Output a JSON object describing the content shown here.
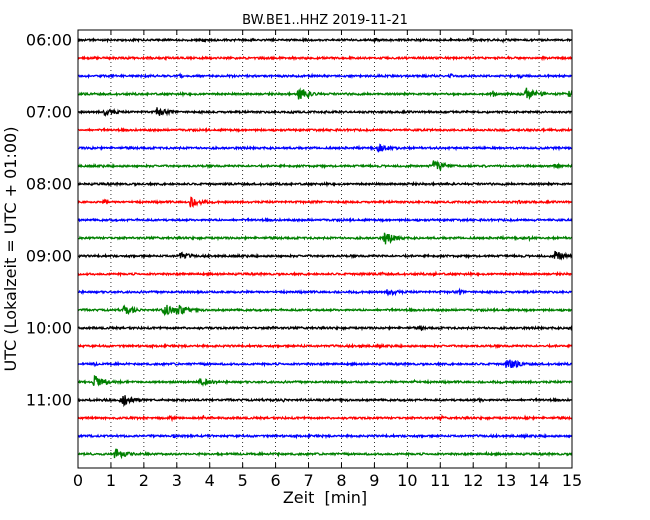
{
  "chart_data": {
    "type": "line",
    "title": "BW.BE1..HHZ 2019-11-21",
    "xlabel": "Zeit  [min]",
    "ylabel": "UTC (Lokalzeit = UTC + 01:00)",
    "xlim": [
      0,
      15
    ],
    "x_ticks": [
      0,
      1,
      2,
      3,
      4,
      5,
      6,
      7,
      8,
      9,
      10,
      11,
      12,
      13,
      14,
      15
    ],
    "y_tick_labels": [
      "06:00",
      "07:00",
      "08:00",
      "09:00",
      "10:00",
      "11:00"
    ],
    "trace_interval_min": 15,
    "color_cycle": [
      "#000000",
      "#ff0000",
      "#0000ff",
      "#008000"
    ],
    "grid": "vertical dotted",
    "traces": [
      {
        "start": "06:00",
        "color": "#000000",
        "events": [
          [
            3.8,
            0.25
          ],
          [
            9.0,
            0.3
          ],
          [
            11.9,
            0.3
          ],
          [
            12.9,
            0.3
          ]
        ]
      },
      {
        "start": "06:15",
        "color": "#ff0000",
        "events": [
          [
            14.1,
            0.2
          ]
        ]
      },
      {
        "start": "06:30",
        "color": "#0000ff",
        "events": [
          [
            3.1,
            0.3
          ],
          [
            7.1,
            0.2
          ],
          [
            11.3,
            0.35
          ],
          [
            13.4,
            0.3
          ]
        ]
      },
      {
        "start": "06:45",
        "color": "#008000",
        "events": [
          [
            6.7,
            0.9
          ],
          [
            8.3,
            0.25
          ],
          [
            12.6,
            0.45
          ],
          [
            13.6,
            0.9
          ],
          [
            14.9,
            0.5
          ]
        ]
      },
      {
        "start": "07:00",
        "color": "#000000",
        "events": [
          [
            0.8,
            0.55
          ],
          [
            2.4,
            0.6
          ],
          [
            6.7,
            0.2
          ]
        ]
      },
      {
        "start": "07:15",
        "color": "#ff0000",
        "events": [
          [
            10.4,
            0.2
          ]
        ]
      },
      {
        "start": "07:30",
        "color": "#0000ff",
        "events": [
          [
            0.4,
            0.25
          ],
          [
            9.1,
            0.55
          ],
          [
            9.7,
            0.3
          ]
        ]
      },
      {
        "start": "07:45",
        "color": "#008000",
        "events": [
          [
            10.8,
            0.9
          ],
          [
            14.5,
            0.4
          ]
        ]
      },
      {
        "start": "08:00",
        "color": "#000000",
        "events": [
          [
            1.7,
            0.2
          ],
          [
            10.0,
            0.2
          ]
        ]
      },
      {
        "start": "08:15",
        "color": "#ff0000",
        "events": [
          [
            0.8,
            0.35
          ],
          [
            3.4,
            0.7
          ],
          [
            13.4,
            0.3
          ]
        ]
      },
      {
        "start": "08:30",
        "color": "#0000ff",
        "events": [
          [
            4.0,
            0.15
          ],
          [
            13.2,
            0.15
          ]
        ]
      },
      {
        "start": "08:45",
        "color": "#008000",
        "events": [
          [
            9.3,
            0.9
          ],
          [
            13.7,
            0.25
          ]
        ]
      },
      {
        "start": "09:00",
        "color": "#000000",
        "events": [
          [
            3.1,
            0.5
          ],
          [
            14.5,
            0.75
          ]
        ]
      },
      {
        "start": "09:15",
        "color": "#ff0000",
        "events": [
          [
            8.6,
            0.3
          ],
          [
            9.2,
            0.3
          ],
          [
            10.8,
            0.3
          ]
        ]
      },
      {
        "start": "09:30",
        "color": "#0000ff",
        "events": [
          [
            4.7,
            0.3
          ],
          [
            9.4,
            0.5
          ],
          [
            11.6,
            0.4
          ]
        ]
      },
      {
        "start": "09:45",
        "color": "#008000",
        "events": [
          [
            1.4,
            0.65
          ],
          [
            2.6,
            0.9
          ],
          [
            3.0,
            0.8
          ]
        ]
      },
      {
        "start": "10:00",
        "color": "#000000",
        "events": [
          [
            5.9,
            0.3
          ],
          [
            10.4,
            0.35
          ],
          [
            14.9,
            0.35
          ]
        ]
      },
      {
        "start": "10:15",
        "color": "#ff0000",
        "events": [
          [
            6.8,
            0.25
          ],
          [
            8.6,
            0.3
          ],
          [
            9.1,
            0.3
          ]
        ]
      },
      {
        "start": "10:30",
        "color": "#0000ff",
        "events": [
          [
            0.5,
            0.3
          ],
          [
            3.9,
            0.2
          ],
          [
            13.0,
            0.85
          ]
        ]
      },
      {
        "start": "10:45",
        "color": "#008000",
        "events": [
          [
            0.5,
            0.85
          ],
          [
            3.7,
            0.6
          ],
          [
            10.2,
            0.3
          ]
        ]
      },
      {
        "start": "11:00",
        "color": "#000000",
        "events": [
          [
            1.3,
            0.85
          ],
          [
            6.2,
            0.35
          ],
          [
            12.2,
            0.4
          ]
        ]
      },
      {
        "start": "11:15",
        "color": "#ff0000",
        "events": [
          [
            2.8,
            0.4
          ],
          [
            3.8,
            0.4
          ],
          [
            11.0,
            0.35
          ],
          [
            13.6,
            0.4
          ]
        ]
      },
      {
        "start": "11:30",
        "color": "#0000ff",
        "events": [
          [
            2.9,
            0.25
          ],
          [
            13.5,
            0.3
          ]
        ]
      },
      {
        "start": "11:45",
        "color": "#008000",
        "events": [
          [
            1.1,
            0.8
          ],
          [
            6.0,
            0.35
          ],
          [
            12.4,
            0.25
          ]
        ]
      }
    ]
  }
}
